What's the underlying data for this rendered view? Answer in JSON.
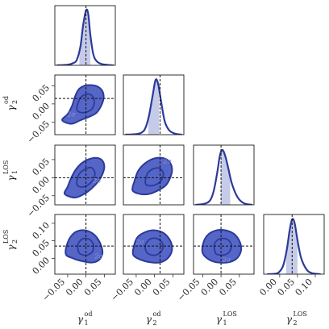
{
  "chart_data": {
    "type": "corner",
    "colors": {
      "main": "#2b3a9a",
      "fill": "#5566c7",
      "band": "#c5cbe8"
    },
    "parameters": [
      {
        "label": "γ",
        "subscript": "1",
        "superscript": "od",
        "range": [
          -0.085,
          0.08
        ],
        "ticks": [
          -0.05,
          0.0,
          0.05
        ],
        "tick_labels": [
          "−0.05",
          "0.00",
          "0.05"
        ],
        "truth": 0.0,
        "kde": {
          "x": [
            -0.08,
            -0.05,
            -0.035,
            -0.025,
            -0.015,
            -0.008,
            0.0,
            0.006,
            0.012,
            0.02,
            0.03,
            0.045,
            0.075
          ],
          "y": [
            0.0,
            0.01,
            0.04,
            0.1,
            0.35,
            0.72,
            1.0,
            0.94,
            0.55,
            0.2,
            0.07,
            0.02,
            0.0
          ]
        },
        "band": [
          -0.018,
          0.012
        ]
      },
      {
        "label": "γ",
        "subscript": "2",
        "superscript": "od",
        "range": [
          -0.085,
          0.08
        ],
        "ticks": [
          -0.05,
          0.0,
          0.05
        ],
        "tick_labels": [
          "−0.05",
          "0.00",
          "0.05"
        ],
        "truth": 0.015,
        "kde": {
          "x": [
            -0.08,
            -0.05,
            -0.035,
            -0.025,
            -0.015,
            -0.005,
            0.003,
            0.01,
            0.018,
            0.028,
            0.04,
            0.055,
            0.075
          ],
          "y": [
            0.0,
            0.01,
            0.04,
            0.12,
            0.35,
            0.72,
            1.0,
            0.92,
            0.6,
            0.24,
            0.08,
            0.02,
            0.0
          ]
        },
        "band": [
          -0.017,
          0.012
        ]
      },
      {
        "label": "γ",
        "subscript": "1",
        "superscript": "LOS",
        "range": [
          -0.075,
          0.09
        ],
        "ticks": [
          -0.05,
          0.0,
          0.05
        ],
        "tick_labels": [
          "−0.05",
          "0.00",
          "0.05"
        ],
        "truth": 0.0,
        "kde": {
          "x": [
            -0.07,
            -0.045,
            -0.03,
            -0.02,
            -0.01,
            -0.003,
            0.004,
            0.012,
            0.02,
            0.03,
            0.045,
            0.062,
            0.085
          ],
          "y": [
            0.0,
            0.02,
            0.08,
            0.25,
            0.6,
            0.9,
            1.0,
            0.88,
            0.66,
            0.38,
            0.14,
            0.03,
            0.0
          ]
        },
        "band": [
          0.0,
          0.025
        ]
      },
      {
        "label": "γ",
        "subscript": "2",
        "superscript": "LOS",
        "range": [
          -0.045,
          0.125
        ],
        "ticks": [
          0.0,
          0.05,
          0.1
        ],
        "tick_labels": [
          "0.00",
          "0.05",
          "0.10"
        ],
        "truth": 0.035,
        "kde": {
          "x": [
            -0.035,
            -0.01,
            0.0,
            0.01,
            0.02,
            0.028,
            0.035,
            0.042,
            0.05,
            0.06,
            0.075,
            0.09,
            0.115
          ],
          "y": [
            0.0,
            0.01,
            0.05,
            0.16,
            0.45,
            0.8,
            1.0,
            0.93,
            0.62,
            0.3,
            0.09,
            0.02,
            0.0
          ]
        },
        "band": [
          0.018,
          0.05
        ]
      }
    ],
    "pairs": [
      {
        "row": 1,
        "col": 0,
        "sigma_label": "2σ",
        "outer": [
          [
            -0.065,
            -0.045
          ],
          [
            -0.05,
            -0.028
          ],
          [
            -0.038,
            -0.005
          ],
          [
            -0.03,
            0.02
          ],
          [
            -0.02,
            0.04
          ],
          [
            -0.005,
            0.05
          ],
          [
            0.012,
            0.052
          ],
          [
            0.032,
            0.048
          ],
          [
            0.045,
            0.035
          ],
          [
            0.048,
            0.015
          ],
          [
            0.04,
            -0.008
          ],
          [
            0.028,
            -0.025
          ],
          [
            0.01,
            -0.035
          ],
          [
            -0.015,
            -0.045
          ],
          [
            -0.04,
            -0.055
          ]
        ],
        "inner": [
          [
            -0.025,
            -0.015
          ],
          [
            -0.018,
            0.012
          ],
          [
            -0.005,
            0.025
          ],
          [
            0.012,
            0.026
          ],
          [
            0.022,
            0.012
          ],
          [
            0.02,
            -0.008
          ],
          [
            0.008,
            -0.02
          ],
          [
            -0.012,
            -0.024
          ]
        ],
        "sigma_pos": [
          -0.04,
          -0.035
        ]
      },
      {
        "row": 2,
        "col": 0,
        "sigma_label": "2σ",
        "outer": [
          [
            -0.058,
            -0.045
          ],
          [
            -0.05,
            -0.025
          ],
          [
            -0.04,
            0.0
          ],
          [
            -0.028,
            0.022
          ],
          [
            -0.012,
            0.04
          ],
          [
            0.005,
            0.05
          ],
          [
            0.025,
            0.055
          ],
          [
            0.042,
            0.05
          ],
          [
            0.05,
            0.032
          ],
          [
            0.045,
            0.01
          ],
          [
            0.032,
            -0.012
          ],
          [
            0.015,
            -0.03
          ],
          [
            -0.005,
            -0.045
          ],
          [
            -0.03,
            -0.055
          ]
        ],
        "inner": [
          [
            -0.025,
            -0.018
          ],
          [
            -0.02,
            0.008
          ],
          [
            -0.005,
            0.022
          ],
          [
            0.014,
            0.028
          ],
          [
            0.024,
            0.015
          ],
          [
            0.02,
            -0.005
          ],
          [
            0.005,
            -0.02
          ],
          [
            -0.012,
            -0.026
          ]
        ],
        "sigma_pos": [
          0.03,
          -0.015
        ]
      },
      {
        "row": 2,
        "col": 1,
        "sigma_label": "2σ",
        "outer": [
          [
            -0.06,
            -0.035
          ],
          [
            -0.055,
            -0.01
          ],
          [
            -0.045,
            0.018
          ],
          [
            -0.028,
            0.038
          ],
          [
            -0.005,
            0.052
          ],
          [
            0.02,
            0.055
          ],
          [
            0.04,
            0.045
          ],
          [
            0.048,
            0.022
          ],
          [
            0.042,
            -0.002
          ],
          [
            0.03,
            -0.022
          ],
          [
            0.01,
            -0.035
          ],
          [
            -0.015,
            -0.045
          ],
          [
            -0.04,
            -0.045
          ]
        ],
        "inner": [
          [
            -0.025,
            -0.015
          ],
          [
            -0.02,
            0.01
          ],
          [
            -0.005,
            0.024
          ],
          [
            0.014,
            0.026
          ],
          [
            0.024,
            0.012
          ],
          [
            0.018,
            -0.008
          ],
          [
            0.002,
            -0.02
          ],
          [
            -0.015,
            -0.022
          ]
        ],
        "sigma_pos": [
          0.035,
          0.04
        ]
      },
      {
        "row": 3,
        "col": 0,
        "sigma_label": "2σ",
        "outer": [
          [
            -0.055,
            0.012
          ],
          [
            -0.05,
            0.045
          ],
          [
            -0.035,
            0.07
          ],
          [
            -0.015,
            0.08
          ],
          [
            0.005,
            0.078
          ],
          [
            0.025,
            0.065
          ],
          [
            0.04,
            0.04
          ],
          [
            0.045,
            0.015
          ],
          [
            0.035,
            -0.005
          ],
          [
            0.015,
            -0.012
          ],
          [
            -0.01,
            -0.008
          ],
          [
            -0.035,
            0.0
          ]
        ],
        "inner": [
          [
            -0.02,
            0.018
          ],
          [
            -0.022,
            0.04
          ],
          [
            -0.01,
            0.055
          ],
          [
            0.008,
            0.055
          ],
          [
            0.02,
            0.04
          ],
          [
            0.018,
            0.02
          ],
          [
            0.005,
            0.01
          ],
          [
            -0.01,
            0.01
          ]
        ],
        "sigma_pos": [
          0.035,
          0.0
        ]
      },
      {
        "row": 3,
        "col": 1,
        "sigma_label": "2σ",
        "outer": [
          [
            -0.058,
            0.01
          ],
          [
            -0.055,
            0.04
          ],
          [
            -0.045,
            0.062
          ],
          [
            -0.025,
            0.075
          ],
          [
            0.0,
            0.08
          ],
          [
            0.025,
            0.072
          ],
          [
            0.042,
            0.052
          ],
          [
            0.048,
            0.028
          ],
          [
            0.04,
            0.005
          ],
          [
            0.02,
            -0.01
          ],
          [
            -0.005,
            -0.012
          ],
          [
            -0.035,
            -0.005
          ]
        ],
        "inner": [
          [
            -0.022,
            0.018
          ],
          [
            -0.025,
            0.038
          ],
          [
            -0.012,
            0.055
          ],
          [
            0.008,
            0.056
          ],
          [
            0.022,
            0.042
          ],
          [
            0.02,
            0.022
          ],
          [
            0.005,
            0.01
          ],
          [
            -0.01,
            0.01
          ]
        ],
        "sigma_pos": [
          -0.04,
          0.04
        ]
      },
      {
        "row": 3,
        "col": 2,
        "sigma_label": "2σ",
        "outer": [
          [
            -0.05,
            0.015
          ],
          [
            -0.048,
            0.045
          ],
          [
            -0.035,
            0.068
          ],
          [
            -0.012,
            0.08
          ],
          [
            0.012,
            0.08
          ],
          [
            0.035,
            0.07
          ],
          [
            0.05,
            0.05
          ],
          [
            0.055,
            0.025
          ],
          [
            0.045,
            0.002
          ],
          [
            0.025,
            -0.01
          ],
          [
            -0.005,
            -0.012
          ],
          [
            -0.03,
            -0.005
          ]
        ],
        "inner": [
          [
            -0.015,
            0.015
          ],
          [
            -0.018,
            0.04
          ],
          [
            -0.005,
            0.055
          ],
          [
            0.015,
            0.055
          ],
          [
            0.028,
            0.04
          ],
          [
            0.024,
            0.02
          ],
          [
            0.01,
            0.01
          ],
          [
            -0.005,
            0.01
          ]
        ],
        "sigma_pos": [
          0.015,
          -0.01
        ]
      }
    ]
  }
}
